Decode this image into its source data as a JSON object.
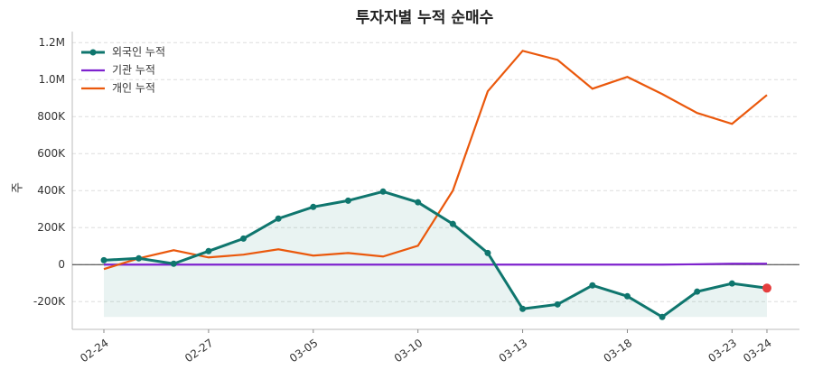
{
  "chart_data": {
    "type": "line",
    "title": "투자자별 누적 순매수",
    "y_label": "주",
    "categories": [
      "02-24",
      null,
      null,
      "02-27",
      null,
      null,
      "03-05",
      null,
      null,
      "03-10",
      null,
      null,
      "03-13",
      null,
      null,
      "03-18",
      null,
      null,
      "03-23",
      "03-24"
    ],
    "series": [
      {
        "name": "외국인 누적",
        "color": "#0f766e",
        "values": [
          24000,
          34000,
          5000,
          73000,
          141000,
          249000,
          312000,
          346000,
          395000,
          337000,
          220000,
          63000,
          -239000,
          -215000,
          -112000,
          -171000,
          -283000,
          -146000,
          -102000,
          -127000
        ]
      },
      {
        "name": "기관 누적",
        "color": "#7e22ce",
        "values": [
          0,
          0,
          0,
          0,
          0,
          0,
          0,
          0,
          0,
          0,
          0,
          0,
          0,
          0,
          0,
          0,
          0,
          2000,
          5000,
          5000
        ]
      },
      {
        "name": "개인 누적",
        "color": "#ea580c",
        "values": [
          -24000,
          34000,
          78000,
          39000,
          54000,
          83000,
          49000,
          63000,
          44000,
          102000,
          400000,
          937000,
          1156000,
          1107000,
          951000,
          1015000,
          922000,
          820000,
          761000,
          917000
        ]
      }
    ],
    "ylim": [
      -350000,
      1260000
    ],
    "yticks": [
      {
        "value": -200000,
        "label": "-200K"
      },
      0,
      {
        "value": 200000,
        "label": "200K"
      },
      {
        "value": 400000,
        "label": "400K"
      },
      {
        "value": 600000,
        "label": "600K"
      },
      {
        "value": 800000,
        "label": "800K"
      },
      {
        "value": 1000000,
        "label": "1.0M"
      },
      {
        "value": 1200000,
        "label": "1.2M"
      }
    ],
    "grid": true,
    "legend": "upper-left"
  }
}
